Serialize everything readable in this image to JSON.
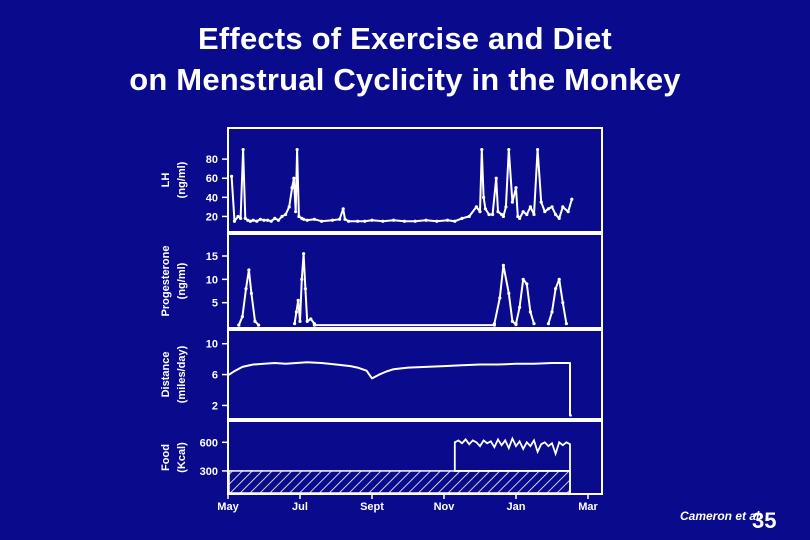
{
  "slide": {
    "title_line1": "Effects of Exercise and Diet",
    "title_line2": "on Menstrual Cyclicity in the Monkey",
    "citation": "Cameron et al",
    "slide_number": "35",
    "colors": {
      "background": "#0a0a8c",
      "foreground": "#ffffff"
    }
  },
  "chart_data": {
    "type": "line",
    "x_ticks": [
      "May",
      "Jul",
      "Sept",
      "Nov",
      "Jan",
      "Mar"
    ],
    "x_range_months": [
      0,
      10
    ],
    "x_tick_positions_months": [
      0,
      2,
      4,
      6,
      8,
      10
    ],
    "panels": [
      {
        "id": "lh",
        "label_line1": "LH",
        "label_line2": "(ng/ml)",
        "yticks": [
          20,
          40,
          60,
          80
        ],
        "ylim": [
          10,
          100
        ],
        "series": [
          {
            "x": [
              0.1,
              0.18,
              0.28,
              0.35,
              0.42,
              0.48,
              0.55,
              0.62,
              0.7,
              0.8,
              0.9,
              1.0,
              1.1,
              1.2,
              1.3,
              1.4,
              1.5,
              1.6,
              1.7,
              1.78,
              1.83,
              1.88,
              1.92,
              1.97,
              2.05,
              2.1,
              2.2,
              2.4,
              2.6,
              2.9,
              3.1,
              3.2,
              3.25,
              3.35,
              3.6,
              3.8,
              4.0,
              4.3,
              4.6,
              4.9,
              5.2,
              5.5,
              5.8,
              6.1,
              6.3,
              6.5,
              6.7,
              6.9,
              7.0,
              7.05,
              7.1,
              7.15,
              7.25,
              7.35,
              7.45,
              7.5,
              7.6,
              7.65,
              7.72,
              7.8,
              7.9,
              8.0,
              8.05,
              8.1,
              8.2,
              8.3,
              8.4,
              8.5,
              8.6,
              8.7,
              8.8,
              8.9,
              9.0,
              9.1,
              9.2,
              9.3,
              9.45,
              9.55
            ],
            "y": [
              62,
              15,
              20,
              18,
              90,
              18,
              16,
              15,
              16,
              15,
              17,
              16,
              16,
              15,
              18,
              16,
              20,
              22,
              30,
              50,
              60,
              25,
              90,
              20,
              18,
              17,
              16,
              17,
              15,
              16,
              17,
              28,
              17,
              15,
              15,
              15,
              16,
              15,
              16,
              15,
              15,
              16,
              15,
              16,
              15,
              18,
              20,
              30,
              25,
              90,
              40,
              28,
              22,
              22,
              60,
              25,
              22,
              20,
              30,
              90,
              35,
              50,
              20,
              18,
              25,
              22,
              30,
              22,
              90,
              35,
              25,
              28,
              30,
              22,
              18,
              30,
              25,
              38
            ]
          }
        ]
      },
      {
        "id": "progesterone",
        "label_line1": "Progesterone",
        "label_line2": "(ng/ml)",
        "yticks": [
          5,
          10,
          15
        ],
        "ylim": [
          0,
          18
        ],
        "series": [
          {
            "x": [
              0.3,
              0.4,
              0.5,
              0.58,
              0.65,
              0.75,
              0.85
            ],
            "y": [
              0.2,
              2,
              8,
              12,
              7,
              1,
              0.2
            ]
          },
          {
            "x": [
              1.85,
              1.9,
              1.95,
              2.0,
              2.05,
              2.1,
              2.15,
              2.2,
              2.3,
              2.4
            ],
            "y": [
              0.5,
              3,
              5.5,
              1,
              10,
              15.5,
              8,
              1,
              1.5,
              0.5
            ]
          },
          {
            "x": [
              2.4,
              7.4
            ],
            "y": [
              0.2,
              0.2
            ]
          },
          {
            "x": [
              7.4,
              7.55,
              7.65,
              7.8,
              7.9,
              8.0
            ],
            "y": [
              0.5,
              6,
              13,
              7,
              1,
              0.3
            ]
          },
          {
            "x": [
              8.0,
              8.1,
              8.2,
              8.3,
              8.4,
              8.5
            ],
            "y": [
              0.5,
              4,
              10,
              9,
              3,
              0.5
            ]
          },
          {
            "x": [
              8.9,
              9.0,
              9.1,
              9.2,
              9.3,
              9.4
            ],
            "y": [
              0.5,
              3,
              8,
              10,
              5,
              0.5
            ]
          }
        ]
      },
      {
        "id": "distance",
        "label_line1": "Distance",
        "label_line2": "(miles/day)",
        "yticks": [
          2,
          6,
          10
        ],
        "ylim": [
          0.5,
          11
        ],
        "series": [
          {
            "x": [
              0,
              0.2,
              0.4,
              0.7,
              1.0,
              1.3,
              1.6,
              1.9,
              2.2,
              2.6,
              3.0,
              3.4,
              3.6,
              3.85,
              4.0,
              4.2,
              4.4,
              4.6,
              5.0,
              5.5,
              6.0,
              6.5,
              7.0,
              7.5,
              8.0,
              8.5,
              9.0,
              9.5,
              9.5,
              9.55
            ],
            "y": [
              5.9,
              6.5,
              7.0,
              7.3,
              7.4,
              7.5,
              7.4,
              7.5,
              7.6,
              7.5,
              7.3,
              7.1,
              6.9,
              6.5,
              5.5,
              6.0,
              6.4,
              6.7,
              6.9,
              7.0,
              7.1,
              7.2,
              7.3,
              7.3,
              7.4,
              7.4,
              7.5,
              7.5,
              0.7,
              0.7
            ]
          }
        ]
      },
      {
        "id": "food",
        "label_line1": "Food",
        "label_line2": "(Kcal)",
        "yticks": [
          300,
          600
        ],
        "ylim": [
          100,
          750
        ],
        "baseline": 300,
        "restricted_from": 6.3,
        "series": [
          {
            "x": [
              6.3,
              6.4,
              6.5,
              6.6,
              6.7,
              6.8,
              6.9,
              7.0,
              7.1,
              7.2,
              7.3,
              7.4,
              7.5,
              7.6,
              7.7,
              7.8,
              7.9,
              8.0,
              8.1,
              8.2,
              8.3,
              8.4,
              8.5,
              8.6,
              8.7,
              8.8,
              8.9,
              9.0,
              9.1,
              9.2,
              9.3,
              9.4,
              9.5
            ],
            "y": [
              600,
              620,
              590,
              630,
              580,
              620,
              600,
              560,
              620,
              590,
              610,
              550,
              630,
              570,
              620,
              540,
              640,
              560,
              610,
              530,
              600,
              560,
              620,
              500,
              580,
              600,
              560,
              590,
              480,
              600,
              570,
              600,
              580
            ]
          }
        ]
      }
    ]
  }
}
